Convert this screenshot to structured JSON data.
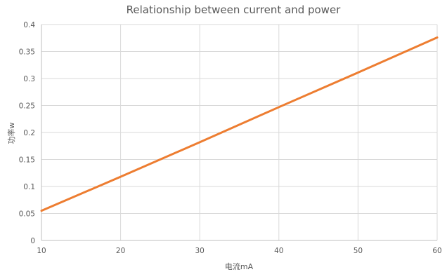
{
  "chart_data": {
    "type": "line",
    "title": "Relationship between current and power",
    "xlabel": "电流mA",
    "ylabel": "功率w",
    "xlim": [
      10,
      60
    ],
    "ylim": [
      0,
      0.4
    ],
    "x_ticks": [
      "10",
      "20",
      "30",
      "40",
      "50",
      "60"
    ],
    "y_ticks": [
      "0",
      "0.05",
      "0.1",
      "0.15",
      "0.2",
      "0.25",
      "0.3",
      "0.35",
      "0.4"
    ],
    "grid": true,
    "legend": "none",
    "series": [
      {
        "color": "#ed7d31",
        "x": [
          10,
          20,
          30,
          40,
          50,
          60
        ],
        "y": [
          0.055,
          0.118,
          0.182,
          0.247,
          0.311,
          0.376
        ]
      }
    ]
  }
}
